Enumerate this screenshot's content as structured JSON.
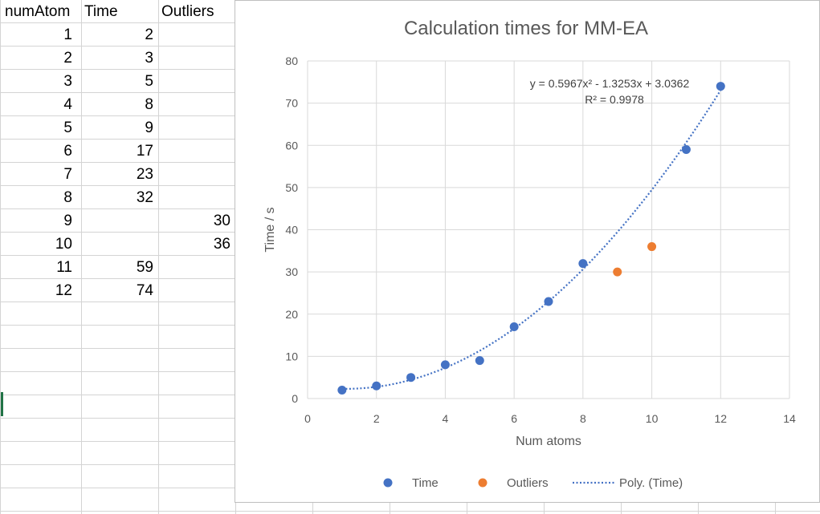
{
  "sheet": {
    "headers": [
      "numAtom",
      "Time",
      "Outliers"
    ],
    "rows": [
      [
        "1",
        "2",
        ""
      ],
      [
        "2",
        "3",
        ""
      ],
      [
        "3",
        "5",
        ""
      ],
      [
        "4",
        "8",
        ""
      ],
      [
        "5",
        "9",
        ""
      ],
      [
        "6",
        "17",
        ""
      ],
      [
        "7",
        "23",
        ""
      ],
      [
        "8",
        "32",
        ""
      ],
      [
        "9",
        "",
        "30"
      ],
      [
        "10",
        "",
        "36"
      ],
      [
        "11",
        "59",
        ""
      ],
      [
        "12",
        "74",
        ""
      ]
    ]
  },
  "chart_data": {
    "type": "scatter",
    "title": "Calculation times for MM-EA",
    "xlabel": "Num atoms",
    "ylabel": "Time / s",
    "xlim": [
      0,
      14
    ],
    "ylim": [
      0,
      80
    ],
    "xticks": [
      "0",
      "2",
      "4",
      "6",
      "8",
      "10",
      "12",
      "14"
    ],
    "yticks": [
      "0",
      "10",
      "20",
      "30",
      "40",
      "50",
      "60",
      "70",
      "80"
    ],
    "grid": true,
    "legend_position": "bottom",
    "series": [
      {
        "name": "Time",
        "color": "#4472C4",
        "points": [
          [
            1,
            2
          ],
          [
            2,
            3
          ],
          [
            3,
            5
          ],
          [
            4,
            8
          ],
          [
            5,
            9
          ],
          [
            6,
            17
          ],
          [
            7,
            23
          ],
          [
            8,
            32
          ],
          [
            11,
            59
          ],
          [
            12,
            74
          ]
        ]
      },
      {
        "name": "Outliers",
        "color": "#ED7D31",
        "points": [
          [
            9,
            30
          ],
          [
            10,
            36
          ]
        ]
      }
    ],
    "trendline": {
      "name": "Poly. (Time)",
      "color": "#4472C4",
      "coefficients": [
        0.5967,
        -1.3253,
        3.0362
      ],
      "x_range": [
        1,
        12
      ],
      "equation": "y = 0.5967x² - 1.3253x + 3.0362",
      "r_squared": "R² = 0.9978"
    }
  }
}
